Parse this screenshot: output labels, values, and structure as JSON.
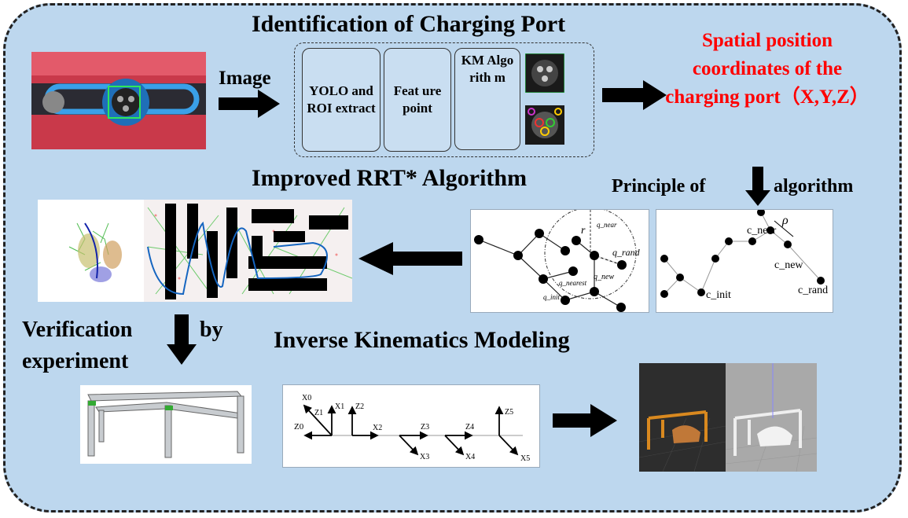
{
  "titles": {
    "identification": "Identification of Charging Port",
    "rrt": "Improved RRT* Algorithm",
    "ik": "Inverse Kinematics Modeling"
  },
  "labels": {
    "image": "Image",
    "principle_left": "Principle of",
    "principle_right": "algorithm",
    "verification_left": "Verification",
    "verification_by": "by",
    "verification_bottom": "experiment"
  },
  "pipeline_boxes": [
    {
      "label": "YOLO and ROI extract"
    },
    {
      "label": "Feat ure point"
    },
    {
      "label": "KM Algo rith m"
    }
  ],
  "output": {
    "text": "Spatial position coordinates of the charging port（X,Y,Z）"
  },
  "rrt_diagram": {
    "labels": [
      "r",
      "q_near",
      "q_rand",
      "q_new",
      "q_nearest",
      "q_init"
    ]
  },
  "principle_diagram": {
    "labels": [
      "c_near",
      "ρ",
      "c_new",
      "c_init",
      "c_rand"
    ]
  },
  "ik_diagram": {
    "labels": [
      "X0",
      "Z1",
      "X1",
      "Z2",
      "Z0",
      "X2",
      "Z3",
      "X3",
      "Z4",
      "X4",
      "Z5",
      "X5"
    ]
  },
  "colors": {
    "background": "#bdd7ee",
    "highlight": "#ff0000",
    "border": "#222222"
  }
}
